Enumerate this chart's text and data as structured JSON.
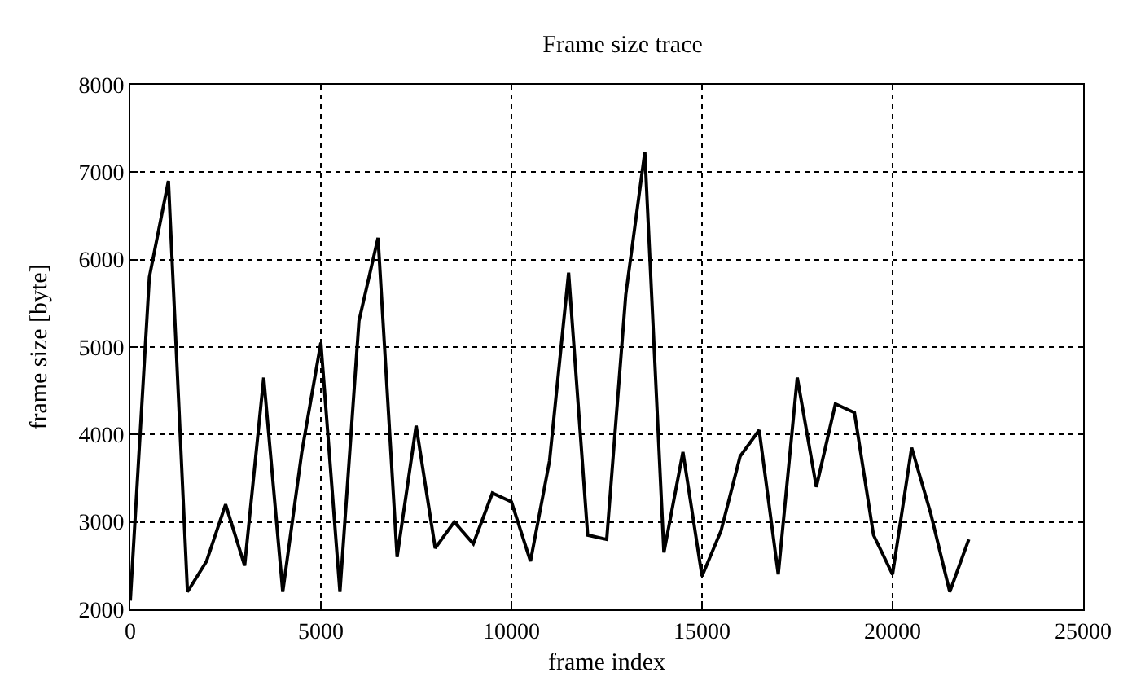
{
  "chart_data": {
    "type": "line",
    "title": "Frame size trace",
    "xlabel": "frame index",
    "ylabel": "frame size [byte]",
    "x": [
      0,
      500,
      1000,
      1500,
      2000,
      2500,
      3000,
      3500,
      4000,
      4500,
      5000,
      5500,
      6000,
      6500,
      7000,
      7500,
      8000,
      8500,
      9000,
      9500,
      10000,
      10500,
      11000,
      11500,
      12000,
      12500,
      13000,
      13500,
      14000,
      14500,
      15000,
      15500,
      16000,
      16500,
      17000,
      17500,
      18000,
      18500,
      19000,
      19500,
      20000,
      20500,
      21000,
      21500,
      22000
    ],
    "series": [
      {
        "color": "#000000",
        "values": [
          2100,
          5800,
          6900,
          2200,
          2550,
          3200,
          2500,
          4650,
          2200,
          3800,
          5050,
          2200,
          5300,
          6250,
          2600,
          4100,
          2700,
          3000,
          2750,
          3330,
          3230,
          2550,
          3700,
          5850,
          2850,
          2800,
          5600,
          7230,
          2650,
          3800,
          2380,
          2900,
          3750,
          4050,
          2400,
          4650,
          3400,
          4350,
          4250,
          2850,
          2400,
          3850,
          3100,
          2200,
          2800
        ]
      }
    ],
    "xlim": [
      0,
      25000
    ],
    "xticks": [
      0,
      5000,
      10000,
      15000,
      20000,
      25000
    ],
    "ylim": [
      2000,
      8000
    ],
    "yticks": [
      2000,
      3000,
      4000,
      5000,
      6000,
      7000,
      8000
    ],
    "grid": true,
    "legend": false,
    "marker": "none",
    "line_style": "solid"
  }
}
